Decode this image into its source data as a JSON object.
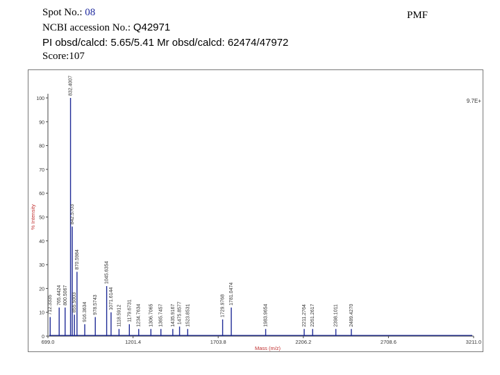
{
  "header": {
    "spot_label": "Spot No.: ",
    "spot_number": "08",
    "accession_label": "NCBI accession No.: ",
    "accession": "Q42971",
    "pi_mr": "PI obsd/calcd: 5.65/5.41  Mr obsd/calcd: 62474/47972",
    "score": "Score:107",
    "tag": "PMF"
  },
  "chart_data": {
    "type": "line",
    "title": "",
    "xlabel": "Mass (m/z)",
    "ylabel": "% Intensity",
    "xlim": [
      699.0,
      3211.0
    ],
    "ylim": [
      0,
      100
    ],
    "x_ticks": [
      "699.0",
      "1201.4",
      "1703.8",
      "2206.2",
      "2708.6",
      "3211.0"
    ],
    "x_tick_values": [
      699.0,
      1201.4,
      1703.8,
      2206.2,
      2708.6,
      3211.0
    ],
    "y_ticks": [
      0,
      10,
      20,
      30,
      40,
      50,
      60,
      70,
      80,
      90,
      100
    ],
    "max_intensity_label": "9.7E+",
    "peaks": [
      {
        "mz": 712.3335,
        "intensity": 8
      },
      {
        "mz": 765.4424,
        "intensity": 12
      },
      {
        "mz": 800.5067,
        "intensity": 12
      },
      {
        "mz": 832.4007,
        "intensity": 100
      },
      {
        "mz": 842.5703,
        "intensity": 46
      },
      {
        "mz": 855.5003,
        "intensity": 9
      },
      {
        "mz": 870.5984,
        "intensity": 27
      },
      {
        "mz": 916.3634,
        "intensity": 5
      },
      {
        "mz": 978.5743,
        "intensity": 8
      },
      {
        "mz": 1071.6144,
        "intensity": 10
      },
      {
        "mz": 1045.6354,
        "intensity": 21
      },
      {
        "mz": 1118.5912,
        "intensity": 3
      },
      {
        "mz": 1179.6731,
        "intensity": 5
      },
      {
        "mz": 1234.7634,
        "intensity": 3
      },
      {
        "mz": 1306.7065,
        "intensity": 3
      },
      {
        "mz": 1365.7457,
        "intensity": 3
      },
      {
        "mz": 1435.9167,
        "intensity": 3
      },
      {
        "mz": 1475.8577,
        "intensity": 4
      },
      {
        "mz": 1523.8531,
        "intensity": 3
      },
      {
        "mz": 1729.9768,
        "intensity": 7
      },
      {
        "mz": 1781.0474,
        "intensity": 12
      },
      {
        "mz": 1983.9654,
        "intensity": 3
      },
      {
        "mz": 2211.2764,
        "intensity": 3
      },
      {
        "mz": 2261.2617,
        "intensity": 3
      },
      {
        "mz": 2398.1011,
        "intensity": 3
      },
      {
        "mz": 2489.427,
        "intensity": 3
      }
    ]
  }
}
